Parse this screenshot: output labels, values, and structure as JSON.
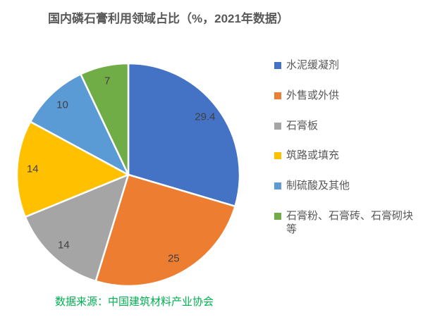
{
  "title": "国内磷石膏利用领域占比（%，2021年数据）",
  "source": "数据来源：中国建筑材料产业协会",
  "colors": {
    "background": "#ffffff",
    "title_text": "#595959",
    "data_label_text": "#404040",
    "legend_text": "#595959",
    "source_text": "#00b050",
    "slice_gap_stroke": "#ffffff"
  },
  "chart_data": {
    "type": "pie",
    "title": "国内磷石膏利用领域占比（%，2021年数据）",
    "unit": "%",
    "year": "2021",
    "start_angle_deg": 0,
    "direction": "clockwise",
    "legend_position": "right",
    "data_labels": "inside",
    "slices": [
      {
        "label": "水泥缓凝剂",
        "value": 29.4,
        "display": "29.4",
        "color": "#4472c4"
      },
      {
        "label": "外售或外供",
        "value": 25,
        "display": "25",
        "color": "#ed7d31"
      },
      {
        "label": "石膏板",
        "value": 14,
        "display": "14",
        "color": "#a5a5a5"
      },
      {
        "label": "筑路或填充",
        "value": 14,
        "display": "14",
        "color": "#ffc000"
      },
      {
        "label": "制硫酸及其他",
        "value": 10,
        "display": "10",
        "color": "#5b9bd5"
      },
      {
        "label": "石膏粉、石膏砖、石膏砌块等",
        "value": 7,
        "display": "7",
        "color": "#70ad47"
      }
    ]
  }
}
